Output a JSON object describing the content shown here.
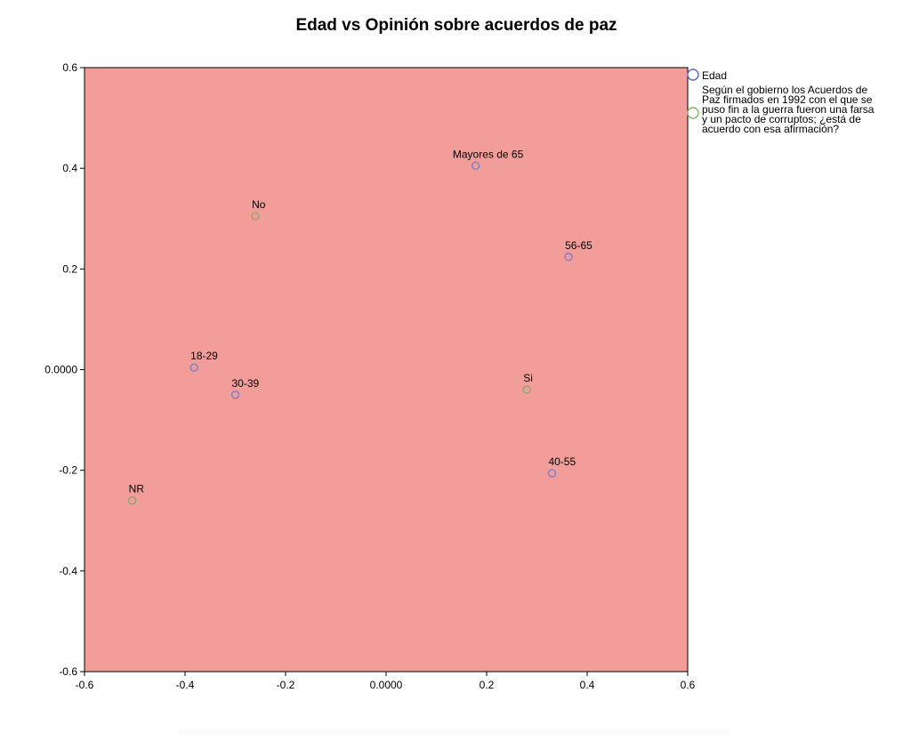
{
  "colors": {
    "plot_background": "#f29d99",
    "axis": "#000000",
    "series_edad": "#7b7fc4",
    "series_opinion": "#8fa66a",
    "legend_edad": "#5a66c8",
    "legend_opinion": "#7dbb66"
  },
  "chart_data": {
    "type": "scatter",
    "title": "Edad vs Opinión sobre acuerdos de paz",
    "xlabel": "",
    "ylabel": "",
    "xlim": [
      -0.6,
      0.6
    ],
    "ylim": [
      -0.6,
      0.6
    ],
    "grid": false,
    "legend_position": "right",
    "x_ticks": [
      {
        "value": -0.6,
        "label": "-0.6"
      },
      {
        "value": -0.4,
        "label": "-0.4"
      },
      {
        "value": -0.2,
        "label": "-0.2"
      },
      {
        "value": 0.0,
        "label": "0.0000"
      },
      {
        "value": 0.2,
        "label": "0.2"
      },
      {
        "value": 0.4,
        "label": "0.4"
      },
      {
        "value": 0.6,
        "label": "0.6"
      }
    ],
    "y_ticks": [
      {
        "value": 0.6,
        "label": "0.6"
      },
      {
        "value": 0.4,
        "label": "0.4"
      },
      {
        "value": 0.2,
        "label": "0.2"
      },
      {
        "value": 0.0,
        "label": "0.0000"
      },
      {
        "value": -0.2,
        "label": "-0.2"
      },
      {
        "value": -0.4,
        "label": "-0.4"
      },
      {
        "value": -0.6,
        "label": "-0.6"
      }
    ],
    "series": [
      {
        "name": "Edad",
        "points": [
          {
            "label": "Mayores de 65",
            "x": 0.178,
            "y": 0.405
          },
          {
            "label": "56-65",
            "x": 0.363,
            "y": 0.224
          },
          {
            "label": "18-29",
            "x": -0.382,
            "y": 0.004
          },
          {
            "label": "30-39",
            "x": -0.3,
            "y": -0.05
          },
          {
            "label": "40-55",
            "x": 0.33,
            "y": -0.206
          }
        ]
      },
      {
        "name": "Según el gobierno los Acuerdos de Paz firmados en 1992 con el que se puso fin a la guerra fueron una farsa y un pacto de corruptos; ¿está de acuerdo con esa afirmación?",
        "name_lines": [
          "Según el gobierno los Acuerdos de",
          "Paz firmados en 1992 con el que se",
          "puso fin a la guerra fueron una farsa",
          "y un pacto de corruptos; ¿está de",
          "acuerdo con esa afirmación?"
        ],
        "points": [
          {
            "label": "No",
            "x": -0.26,
            "y": 0.305
          },
          {
            "label": "Si",
            "x": 0.28,
            "y": -0.04
          },
          {
            "label": "NR",
            "x": -0.505,
            "y": -0.26
          }
        ]
      }
    ]
  }
}
